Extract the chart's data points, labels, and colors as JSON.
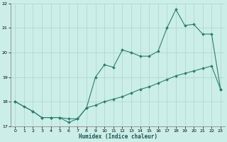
{
  "xlabel": "Humidex (Indice chaleur)",
  "x": [
    0,
    1,
    2,
    3,
    4,
    5,
    6,
    7,
    8,
    9,
    10,
    11,
    12,
    13,
    14,
    15,
    16,
    17,
    18,
    19,
    20,
    21,
    22,
    23
  ],
  "line_upper_x": [
    0,
    1,
    2,
    3,
    4,
    5,
    6,
    7,
    8,
    9,
    10,
    11,
    12,
    13,
    14,
    15,
    16,
    17,
    18,
    19,
    20,
    21,
    22,
    23
  ],
  "line_upper_y": [
    18.0,
    17.8,
    17.6,
    17.35,
    17.35,
    17.35,
    17.15,
    17.3,
    17.75,
    19.0,
    19.5,
    19.4,
    20.1,
    20.0,
    19.85,
    19.85,
    20.05,
    21.0,
    21.75,
    21.1,
    21.15,
    20.75,
    20.75,
    18.5
  ],
  "line_lower_x": [
    0,
    2,
    3,
    4,
    5,
    6,
    7,
    8,
    9,
    10,
    11,
    12,
    13,
    14,
    15,
    16,
    17,
    18,
    19,
    20,
    21,
    22,
    23
  ],
  "line_lower_y": [
    18.0,
    17.6,
    17.35,
    17.35,
    17.35,
    17.3,
    17.3,
    17.75,
    17.85,
    18.0,
    18.1,
    18.2,
    18.35,
    18.5,
    18.6,
    18.75,
    18.9,
    19.05,
    19.15,
    19.25,
    19.35,
    19.45,
    18.5
  ],
  "ylim": [
    17.0,
    22.0
  ],
  "xlim": [
    -0.5,
    23.5
  ],
  "yticks": [
    17,
    18,
    19,
    20,
    21,
    22
  ],
  "xticks": [
    0,
    1,
    2,
    3,
    4,
    5,
    6,
    7,
    8,
    9,
    10,
    11,
    12,
    13,
    14,
    15,
    16,
    17,
    18,
    19,
    20,
    21,
    22,
    23
  ],
  "line_color": "#2d7d6f",
  "bg_color": "#cceee8",
  "grid_color": "#aad4ce",
  "spine_color": "#888888"
}
